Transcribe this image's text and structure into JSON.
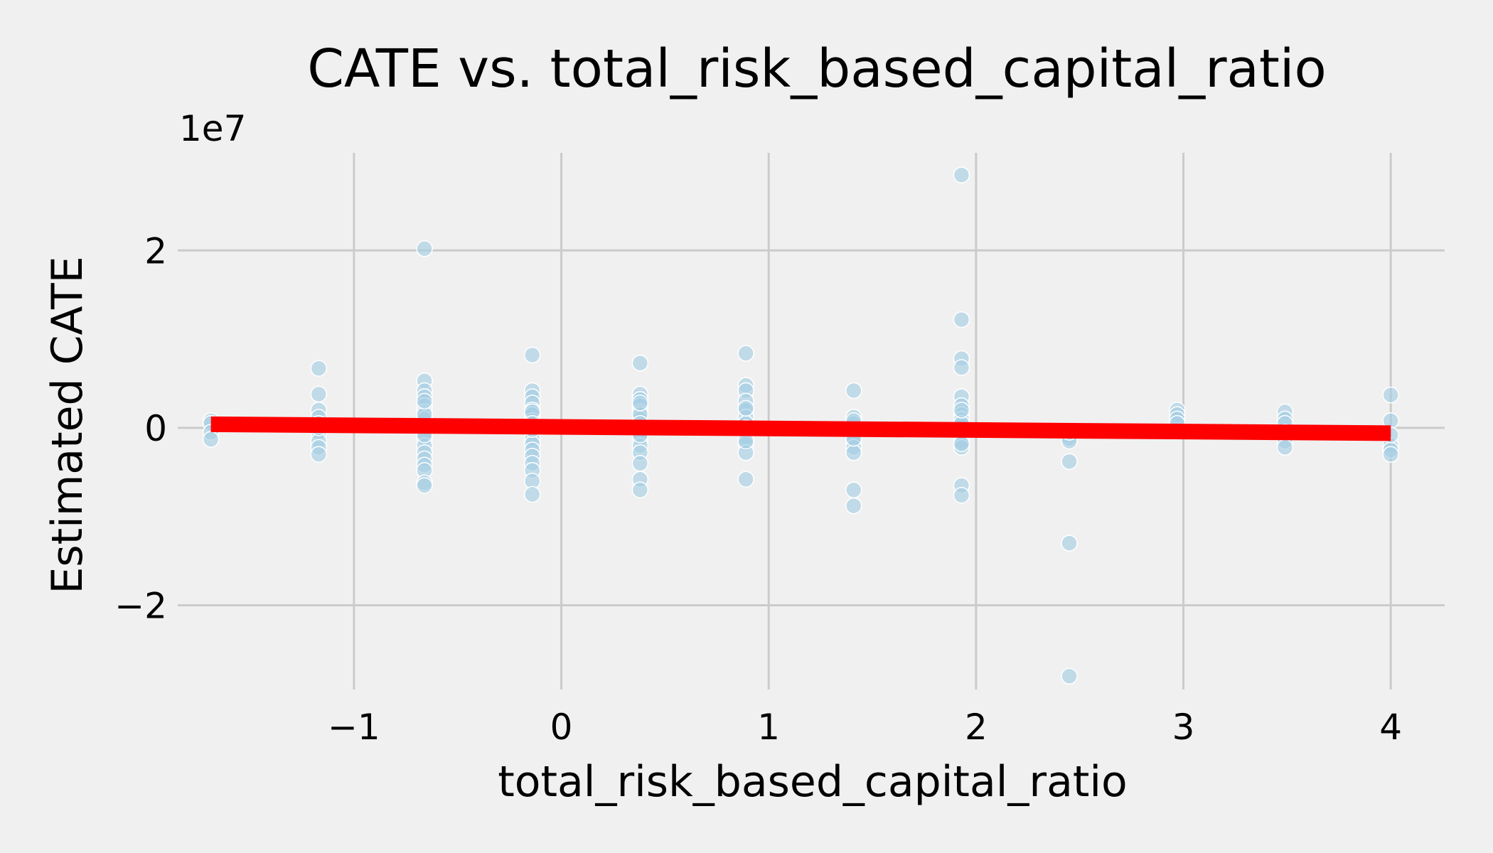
{
  "chart_data": {
    "type": "scatter",
    "title": "CATE vs. total_risk_based_capital_ratio",
    "xlabel": "total_risk_based_capital_ratio",
    "ylabel": "Estimated CATE",
    "y_offset_label": "1e7",
    "y_scale_factor": 10000000,
    "xlim": [
      -1.85,
      4.26
    ],
    "ylim": [
      -2.95,
      3.1
    ],
    "xticks": [
      -1,
      0,
      1,
      2,
      3,
      4
    ],
    "xtick_labels": [
      "−1",
      "0",
      "1",
      "2",
      "3",
      "4"
    ],
    "yticks": [
      -2,
      0,
      2
    ],
    "ytick_labels": [
      "−2",
      "0",
      "2"
    ],
    "grid": true,
    "series": [
      {
        "kind": "scatter",
        "color": "#a6cee3",
        "x": [
          -1.69,
          -1.69,
          -1.69,
          -1.69,
          -1.17,
          -1.17,
          -1.17,
          -1.17,
          -1.17,
          -1.17,
          -1.17,
          -1.17,
          -1.17,
          -1.17,
          -0.66,
          -0.66,
          -0.66,
          -0.66,
          -0.66,
          -0.66,
          -0.66,
          -0.66,
          -0.66,
          -0.66,
          -0.66,
          -0.66,
          -0.66,
          -0.66,
          -0.66,
          -0.66,
          -0.66,
          -0.66,
          -0.66,
          -0.66,
          -0.14,
          -0.14,
          -0.14,
          -0.14,
          -0.14,
          -0.14,
          -0.14,
          -0.14,
          -0.14,
          -0.14,
          -0.14,
          -0.14,
          -0.14,
          -0.14,
          -0.14,
          -0.14,
          -0.14,
          -0.14,
          -0.14,
          -0.14,
          0.38,
          0.38,
          0.38,
          0.38,
          0.38,
          0.38,
          0.38,
          0.38,
          0.38,
          0.38,
          0.38,
          0.38,
          0.38,
          0.38,
          0.38,
          0.38,
          0.38,
          0.38,
          0.89,
          0.89,
          0.89,
          0.89,
          0.89,
          0.89,
          0.89,
          0.89,
          0.89,
          0.89,
          0.89,
          0.89,
          0.89,
          0.89,
          0.89,
          1.41,
          1.41,
          1.41,
          1.41,
          1.41,
          1.41,
          1.41,
          1.41,
          1.41,
          1.41,
          1.41,
          1.41,
          1.93,
          1.93,
          1.93,
          1.93,
          1.93,
          1.93,
          1.93,
          1.93,
          1.93,
          1.93,
          1.93,
          1.93,
          1.93,
          1.93,
          1.93,
          1.93,
          1.93,
          1.93,
          2.45,
          2.45,
          2.45,
          2.45,
          2.45,
          2.45,
          2.97,
          2.97,
          2.97,
          2.97,
          3.49,
          3.49,
          3.49,
          3.49,
          3.49,
          3.49,
          4.0,
          4.0,
          4.0,
          4.0,
          4.0,
          4.0
        ],
        "y": [
          0.08,
          0.05,
          -0.05,
          -0.13,
          0.67,
          0.38,
          0.2,
          0.12,
          0.05,
          -0.05,
          -0.15,
          -0.22,
          -0.3,
          0.0,
          2.02,
          0.53,
          0.42,
          0.35,
          0.25,
          0.18,
          0.1,
          0.02,
          -0.05,
          -0.12,
          -0.2,
          -0.28,
          -0.35,
          -0.42,
          -0.48,
          -0.62,
          -0.65,
          0.15,
          -0.08,
          0.3,
          0.82,
          0.42,
          0.35,
          0.28,
          0.2,
          0.15,
          0.08,
          0.0,
          -0.05,
          -0.12,
          -0.18,
          -0.25,
          -0.32,
          -0.4,
          -0.48,
          -0.6,
          -0.75,
          0.18,
          -0.02,
          0.05,
          0.73,
          0.38,
          0.32,
          0.25,
          0.18,
          0.1,
          0.02,
          -0.05,
          -0.12,
          -0.2,
          -0.28,
          -0.4,
          -0.58,
          -0.7,
          0.15,
          0.05,
          -0.08,
          0.28,
          0.84,
          0.48,
          0.42,
          0.3,
          0.2,
          0.12,
          0.05,
          -0.02,
          -0.1,
          -0.18,
          -0.28,
          -0.58,
          0.22,
          0.0,
          -0.15,
          0.42,
          0.12,
          0.05,
          -0.02,
          -0.08,
          -0.15,
          -0.22,
          -0.28,
          -0.7,
          -0.88,
          0.08,
          -0.12,
          2.85,
          1.22,
          0.78,
          0.68,
          0.35,
          0.25,
          0.15,
          0.08,
          0.02,
          -0.05,
          -0.15,
          -0.22,
          -0.65,
          -0.76,
          0.1,
          -0.18,
          0.05,
          0.2,
          -0.12,
          -0.15,
          -0.38,
          -1.3,
          -2.8,
          -0.05,
          0.2,
          0.15,
          0.1,
          0.05,
          0.18,
          0.1,
          0.05,
          -0.05,
          -0.15,
          -0.22,
          0.37,
          0.08,
          -0.2,
          -0.25,
          -0.3,
          -0.08
        ]
      },
      {
        "kind": "line",
        "color": "#ff0000",
        "x": [
          -1.69,
          4.0
        ],
        "y": [
          0.04,
          -0.06
        ]
      }
    ]
  }
}
